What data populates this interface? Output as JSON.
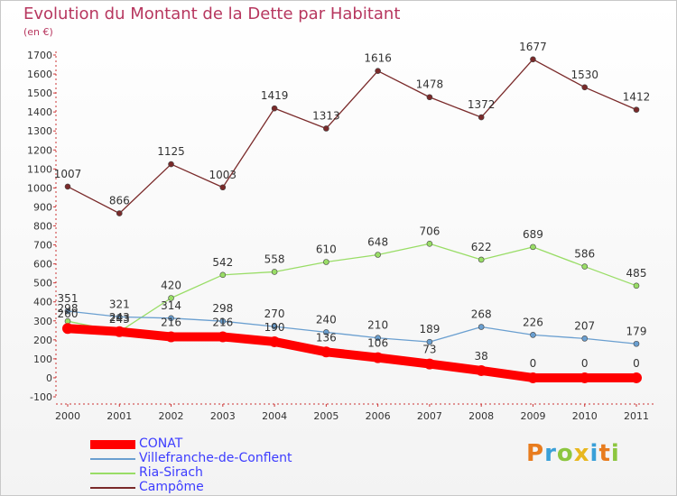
{
  "title": "Evolution du Montant de la Dette par Habitant",
  "subtitle": "(en €)",
  "logo": "Proxiti",
  "chart_data": {
    "type": "line",
    "x": [
      "2000",
      "2001",
      "2002",
      "2003",
      "2004",
      "2005",
      "2006",
      "2007",
      "2008",
      "2009",
      "2010",
      "2011"
    ],
    "ylim": [
      -100,
      1700
    ],
    "yticks": [
      -100,
      0,
      100,
      200,
      300,
      400,
      500,
      600,
      700,
      800,
      900,
      1000,
      1100,
      1200,
      1300,
      1400,
      1500,
      1600,
      1700
    ],
    "grid": false,
    "legend_position": "bottom-left",
    "series": [
      {
        "name": "CONAT",
        "color": "#ff0000",
        "values": [
          260,
          243,
          216,
          216,
          190,
          136,
          106,
          73,
          38,
          0,
          0,
          0
        ]
      },
      {
        "name": "Villefranche-de-Conflent",
        "color": "#6a9fd0",
        "values": [
          351,
          321,
          314,
          298,
          270,
          240,
          210,
          189,
          268,
          226,
          207,
          179
        ]
      },
      {
        "name": "Ria-Sirach",
        "color": "#99dd66",
        "values": [
          298,
          243,
          420,
          542,
          558,
          610,
          648,
          706,
          622,
          689,
          586,
          485
        ]
      },
      {
        "name": "Campôme",
        "color": "#7a2a2a",
        "values": [
          1007,
          866,
          1125,
          1003,
          1419,
          1313,
          1616,
          1478,
          1372,
          1677,
          1530,
          1412
        ]
      }
    ]
  }
}
